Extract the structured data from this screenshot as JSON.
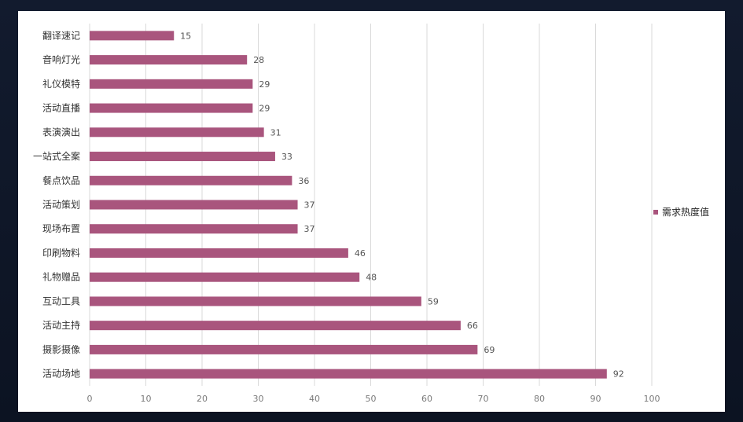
{
  "colors": {
    "bar": "#a9557d",
    "grid": "#d9d9d9",
    "panel": "#ffffff",
    "background": "#0f1626"
  },
  "chart_data": {
    "type": "bar",
    "orientation": "horizontal",
    "categories": [
      "翻译速记",
      "音响灯光",
      "礼仪模特",
      "活动直播",
      "表演演出",
      "一站式全案",
      "餐点饮品",
      "活动策划",
      "现场布置",
      "印刷物料",
      "礼物赠品",
      "互动工具",
      "活动主持",
      "摄影摄像",
      "活动场地"
    ],
    "series": [
      {
        "name": "需求热度值",
        "values": [
          15,
          28,
          29,
          29,
          31,
          33,
          36,
          37,
          37,
          46,
          48,
          59,
          66,
          69,
          92
        ]
      }
    ],
    "xlim": [
      0,
      100
    ],
    "xticks": [
      0,
      10,
      20,
      30,
      40,
      50,
      60,
      70,
      80,
      90,
      100
    ],
    "grid": "vertical",
    "legend_position": "right",
    "data_labels": true,
    "title": "",
    "xlabel": "",
    "ylabel": ""
  }
}
